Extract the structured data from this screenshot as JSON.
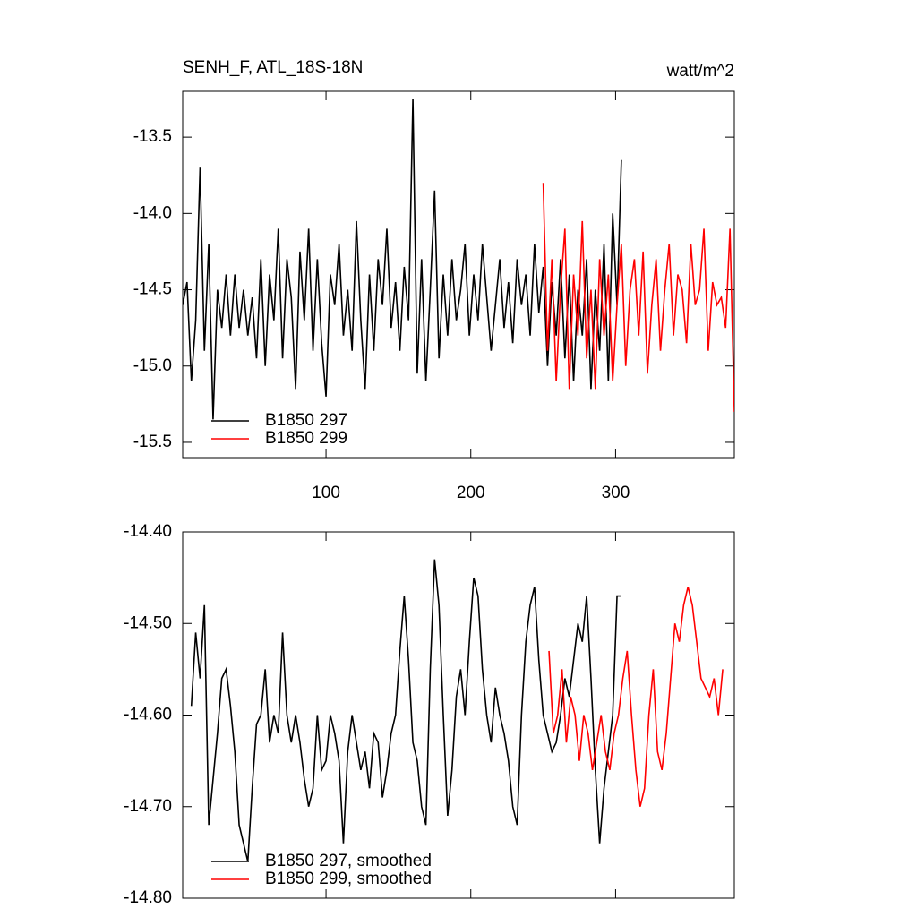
{
  "chart_data": [
    {
      "type": "line",
      "title": "SENH_F, ATL_18S-18N",
      "units": "watt/m^2",
      "xlim": [
        1,
        382
      ],
      "xticks": [
        100,
        200,
        300
      ],
      "xtick_labels": true,
      "ylim": [
        -15.6,
        -13.2
      ],
      "yticks": [
        -13.5,
        {
          "value": -14,
          "label": "-14.0"
        },
        -14.5,
        {
          "value": -15,
          "label": "-15.0"
        },
        -15.5
      ],
      "legend": "lower left",
      "series": [
        {
          "name": "B1850 297",
          "color": "#000000",
          "x": [
            1,
            4,
            7,
            10,
            13,
            16,
            19,
            22,
            25,
            28,
            31,
            34,
            37,
            40,
            43,
            46,
            49,
            52,
            55,
            58,
            61,
            64,
            67,
            70,
            73,
            76,
            79,
            82,
            85,
            88,
            91,
            94,
            97,
            100,
            103,
            106,
            109,
            112,
            115,
            118,
            121,
            124,
            127,
            130,
            133,
            136,
            139,
            142,
            145,
            148,
            151,
            154,
            157,
            160,
            163,
            166,
            169,
            172,
            175,
            178,
            181,
            184,
            187,
            190,
            193,
            196,
            199,
            202,
            205,
            208,
            211,
            214,
            217,
            220,
            223,
            226,
            229,
            232,
            235,
            238,
            241,
            244,
            247,
            250,
            253,
            256,
            259,
            262,
            265,
            268,
            271,
            274,
            277,
            280,
            283,
            286,
            289,
            292,
            295,
            298,
            301,
            304
          ],
          "values": [
            -14.6,
            -14.45,
            -15.1,
            -14.7,
            -13.7,
            -14.9,
            -14.2,
            -15.35,
            -14.5,
            -14.75,
            -14.4,
            -14.8,
            -14.4,
            -14.75,
            -14.5,
            -14.8,
            -14.55,
            -14.95,
            -14.3,
            -15.0,
            -14.4,
            -14.7,
            -14.1,
            -14.95,
            -14.3,
            -14.55,
            -15.15,
            -14.25,
            -14.7,
            -14.1,
            -14.9,
            -14.3,
            -14.85,
            -15.2,
            -14.4,
            -14.6,
            -14.2,
            -14.8,
            -14.5,
            -14.9,
            -14.05,
            -14.7,
            -15.15,
            -14.4,
            -14.9,
            -14.3,
            -14.6,
            -14.1,
            -14.75,
            -14.45,
            -14.9,
            -14.35,
            -14.7,
            -13.25,
            -15.05,
            -14.3,
            -15.1,
            -14.5,
            -13.85,
            -14.95,
            -14.4,
            -14.8,
            -14.3,
            -14.7,
            -14.5,
            -14.2,
            -14.8,
            -14.4,
            -14.7,
            -14.2,
            -14.55,
            -14.9,
            -14.6,
            -14.3,
            -14.75,
            -14.45,
            -14.85,
            -14.3,
            -14.6,
            -14.4,
            -14.8,
            -14.2,
            -14.65,
            -14.35,
            -15.0,
            -14.45,
            -14.8,
            -14.3,
            -14.95,
            -14.4,
            -15.1,
            -14.5,
            -14.8,
            -14.3,
            -15.15,
            -14.5,
            -14.9,
            -14.2,
            -15.1,
            -14.0,
            -14.6,
            -13.65
          ]
        },
        {
          "name": "B1850 299",
          "color": "#ff0000",
          "x": [
            250,
            253,
            256,
            259,
            262,
            265,
            268,
            271,
            274,
            277,
            280,
            283,
            286,
            289,
            292,
            295,
            298,
            301,
            304,
            307,
            310,
            313,
            316,
            319,
            322,
            325,
            328,
            331,
            334,
            337,
            340,
            343,
            346,
            349,
            352,
            355,
            358,
            361,
            364,
            367,
            370,
            373,
            376,
            379,
            382
          ],
          "values": [
            -13.8,
            -14.9,
            -14.3,
            -15.1,
            -14.5,
            -14.1,
            -15.15,
            -14.4,
            -14.8,
            -14.05,
            -14.95,
            -14.5,
            -15.15,
            -14.3,
            -14.8,
            -14.4,
            -15.1,
            -14.6,
            -14.2,
            -15.0,
            -14.5,
            -14.3,
            -14.8,
            -14.25,
            -15.05,
            -14.6,
            -14.3,
            -14.9,
            -14.5,
            -14.2,
            -14.8,
            -14.4,
            -14.5,
            -14.85,
            -14.2,
            -14.6,
            -14.5,
            -14.1,
            -14.9,
            -14.45,
            -14.6,
            -14.55,
            -14.75,
            -14.1,
            -15.3
          ]
        }
      ]
    },
    {
      "type": "line",
      "xlim": [
        1,
        382
      ],
      "xticks": [
        100,
        200,
        300
      ],
      "xtick_labels": false,
      "ylim": [
        -14.8,
        -14.4
      ],
      "yticks": [
        {
          "value": -14.4,
          "label": "-14.40"
        },
        {
          "value": -14.5,
          "label": "-14.50"
        },
        {
          "value": -14.6,
          "label": "-14.60"
        },
        {
          "value": -14.7,
          "label": "-14.70"
        },
        {
          "value": -14.8,
          "label": "-14.80"
        }
      ],
      "legend": "lower left",
      "series": [
        {
          "name": "B1850 297, smoothed",
          "color": "#000000",
          "x": [
            7,
            10,
            13,
            16,
            19,
            22,
            25,
            28,
            31,
            34,
            37,
            40,
            43,
            46,
            49,
            52,
            55,
            58,
            61,
            64,
            67,
            70,
            73,
            76,
            79,
            82,
            85,
            88,
            91,
            94,
            97,
            100,
            103,
            106,
            109,
            112,
            115,
            118,
            121,
            124,
            127,
            130,
            133,
            136,
            139,
            142,
            145,
            148,
            151,
            154,
            157,
            160,
            163,
            166,
            169,
            172,
            175,
            178,
            181,
            184,
            187,
            190,
            193,
            196,
            199,
            202,
            205,
            208,
            211,
            214,
            217,
            220,
            223,
            226,
            229,
            232,
            235,
            238,
            241,
            244,
            247,
            250,
            253,
            256,
            259,
            262,
            265,
            268,
            271,
            274,
            277,
            280,
            283,
            286,
            289,
            292,
            295,
            298,
            301,
            304
          ],
          "values": [
            -14.59,
            -14.51,
            -14.56,
            -14.48,
            -14.72,
            -14.67,
            -14.62,
            -14.56,
            -14.55,
            -14.59,
            -14.64,
            -14.72,
            -14.74,
            -14.76,
            -14.68,
            -14.61,
            -14.6,
            -14.55,
            -14.63,
            -14.6,
            -14.62,
            -14.51,
            -14.6,
            -14.63,
            -14.6,
            -14.63,
            -14.67,
            -14.7,
            -14.68,
            -14.6,
            -14.66,
            -14.65,
            -14.6,
            -14.62,
            -14.65,
            -14.74,
            -14.64,
            -14.6,
            -14.63,
            -14.66,
            -14.64,
            -14.68,
            -14.62,
            -14.63,
            -14.69,
            -14.66,
            -14.62,
            -14.6,
            -14.53,
            -14.47,
            -14.54,
            -14.63,
            -14.65,
            -14.7,
            -14.72,
            -14.55,
            -14.43,
            -14.48,
            -14.6,
            -14.71,
            -14.66,
            -14.58,
            -14.55,
            -14.6,
            -14.52,
            -14.45,
            -14.47,
            -14.55,
            -14.6,
            -14.63,
            -14.57,
            -14.6,
            -14.62,
            -14.65,
            -14.7,
            -14.72,
            -14.6,
            -14.52,
            -14.48,
            -14.46,
            -14.54,
            -14.6,
            -14.62,
            -14.64,
            -14.63,
            -14.6,
            -14.56,
            -14.58,
            -14.54,
            -14.5,
            -14.52,
            -14.47,
            -14.56,
            -14.66,
            -14.74,
            -14.68,
            -14.64,
            -14.6,
            -14.47,
            -14.47
          ]
        },
        {
          "name": "B1850 299, smoothed",
          "color": "#ff0000",
          "x": [
            254,
            257,
            260,
            263,
            266,
            269,
            272,
            275,
            278,
            281,
            284,
            287,
            290,
            293,
            296,
            299,
            302,
            305,
            308,
            311,
            314,
            317,
            320,
            323,
            326,
            329,
            332,
            335,
            338,
            341,
            344,
            347,
            350,
            353,
            356,
            359,
            362,
            365,
            368,
            371,
            374
          ],
          "values": [
            -14.53,
            -14.62,
            -14.6,
            -14.55,
            -14.63,
            -14.58,
            -14.6,
            -14.65,
            -14.6,
            -14.62,
            -14.66,
            -14.63,
            -14.6,
            -14.64,
            -14.66,
            -14.62,
            -14.6,
            -14.56,
            -14.53,
            -14.6,
            -14.66,
            -14.7,
            -14.68,
            -14.6,
            -14.55,
            -14.64,
            -14.66,
            -14.62,
            -14.56,
            -14.5,
            -14.52,
            -14.48,
            -14.46,
            -14.48,
            -14.52,
            -14.56,
            -14.57,
            -14.58,
            -14.56,
            -14.6,
            -14.55
          ]
        }
      ]
    }
  ]
}
